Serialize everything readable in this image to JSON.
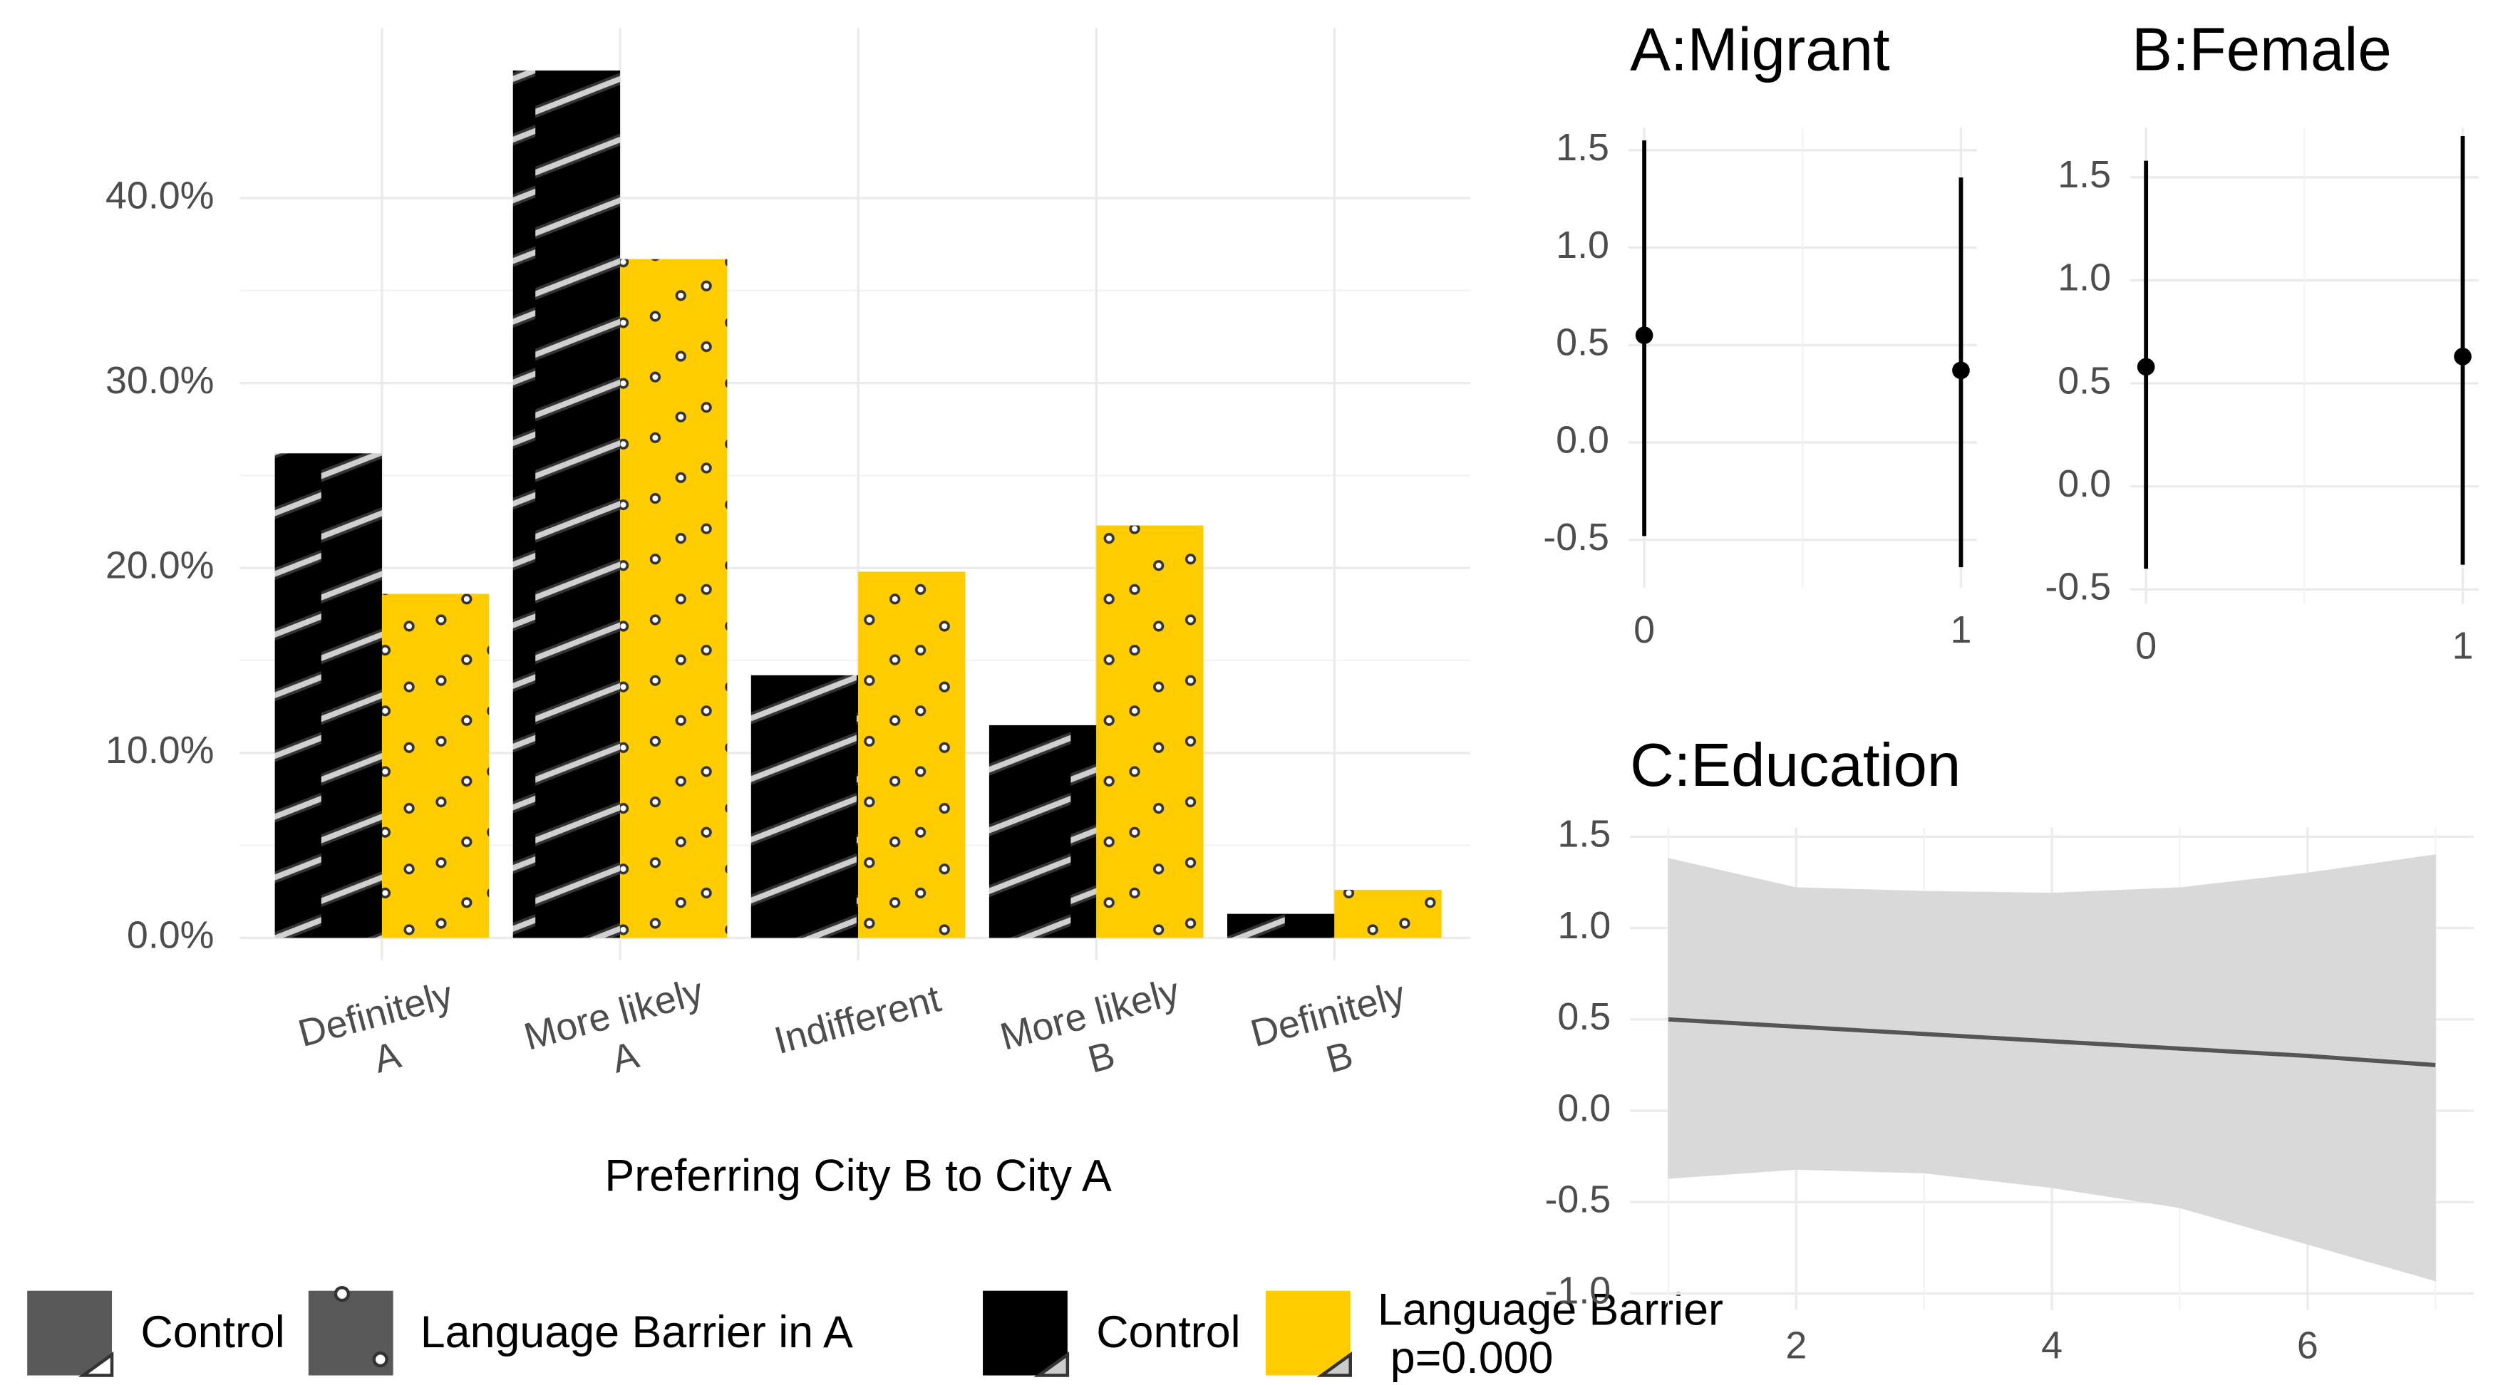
{
  "chart_data": [
    {
      "type": "bar",
      "x_label": "Preferring City B to City A",
      "categories": [
        [
          "Definitely",
          "A"
        ],
        [
          "More likely",
          "A"
        ],
        [
          "Indifferent"
        ],
        [
          "More likely",
          "B"
        ],
        [
          "Definitely",
          "B"
        ]
      ],
      "series": [
        {
          "name": "Control",
          "color": "#000000",
          "pattern": "stripe",
          "values": [
            26.2,
            46.9,
            14.2,
            11.5,
            1.3
          ]
        },
        {
          "name": "Language Barrier",
          "color": "#FFCC00",
          "pattern": "dot",
          "values": [
            18.6,
            36.7,
            19.8,
            22.3,
            2.6
          ]
        }
      ],
      "legend_note": "p=0.000",
      "pattern_legend": [
        "Control",
        "Language Barrier in A"
      ],
      "ylim": [
        -1.2,
        49.2
      ],
      "yticks": [
        {
          "value": 0,
          "label": "0.0%"
        },
        {
          "value": 10,
          "label": "10.0%"
        },
        {
          "value": 20,
          "label": "20.0%"
        },
        {
          "value": 30,
          "label": "30.0%"
        },
        {
          "value": 40,
          "label": "40.0%"
        }
      ],
      "grid": true
    },
    {
      "type": "errorbar",
      "title": "A:Migrant",
      "x": [
        0,
        1
      ],
      "values": [
        0.55,
        0.37
      ],
      "lower": [
        -0.48,
        -0.64
      ],
      "upper": [
        1.55,
        1.36
      ],
      "xlim": [
        -0.05,
        1.05
      ],
      "xticks": [
        0,
        1
      ],
      "ylim": [
        -0.746,
        1.615
      ],
      "yticks": [
        -0.5,
        {
          "value": 0,
          "label": "0.0"
        },
        0.5,
        {
          "value": 1,
          "label": "1.0"
        },
        1.5
      ],
      "grid": true
    },
    {
      "type": "errorbar",
      "title": "B:Female",
      "x": [
        0,
        1
      ],
      "values": [
        0.58,
        0.63
      ],
      "lower": [
        -0.4,
        -0.38
      ],
      "upper": [
        1.58,
        1.7
      ],
      "xlim": [
        -0.05,
        1.05
      ],
      "xticks": [
        0,
        1
      ],
      "ylim": [
        -0.57,
        1.74
      ],
      "yticks": [
        -0.5,
        {
          "value": 0,
          "label": "0.0"
        },
        0.5,
        {
          "value": 1,
          "label": "1.0"
        },
        1.5
      ],
      "grid": true
    },
    {
      "type": "ribbon",
      "title": "C:Education",
      "x": [
        1,
        2,
        3,
        4,
        5,
        6,
        7
      ],
      "values": [
        0.5,
        0.46,
        0.42,
        0.38,
        0.34,
        0.3,
        0.25
      ],
      "lower": [
        -0.37,
        -0.32,
        -0.34,
        -0.42,
        -0.53,
        -0.73,
        -0.93
      ],
      "upper": [
        1.38,
        1.22,
        1.2,
        1.19,
        1.22,
        1.3,
        1.4
      ],
      "color": "#555555",
      "band_color": "#d9d9d9",
      "xlim": [
        0.7,
        7.3
      ],
      "xticks": [
        2,
        4,
        6
      ],
      "ylim": [
        -1.09,
        1.55
      ],
      "yticks": [
        {
          "value": -1,
          "label": "-1.0"
        },
        -0.5,
        {
          "value": 0,
          "label": "0.0"
        },
        0.5,
        {
          "value": 1,
          "label": "1.0"
        },
        1.5
      ],
      "grid": true
    }
  ]
}
